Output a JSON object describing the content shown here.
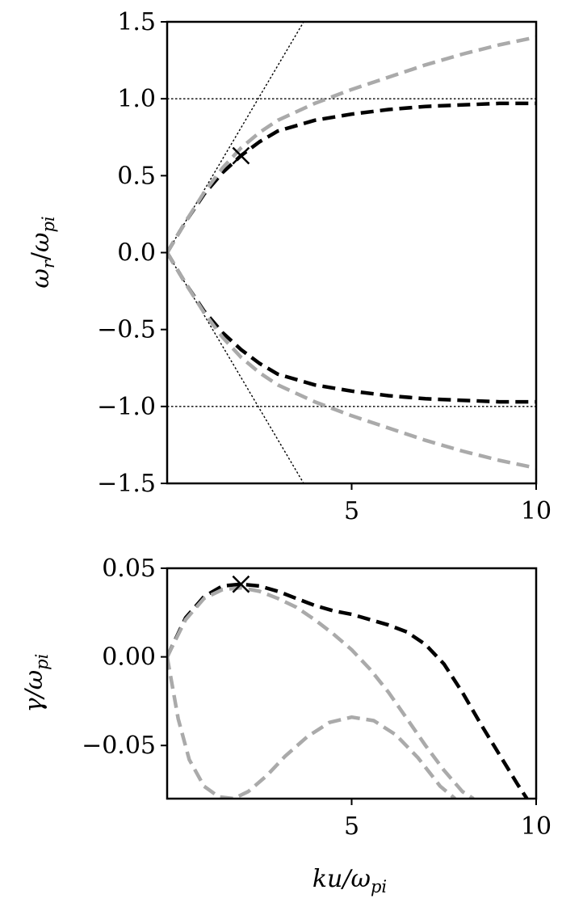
{
  "chart_data": [
    {
      "type": "line",
      "title": "",
      "xlabel": "",
      "ylabel": "ωr/ωpi",
      "ylabel_parts": {
        "base": "ω",
        "sub1": "r",
        "slash": "/",
        "base2": "ω",
        "sub2": "pi"
      },
      "xlim": [
        0,
        10
      ],
      "ylim": [
        -1.5,
        1.5
      ],
      "xticks": [
        5,
        10
      ],
      "xtick_labels": [
        "5",
        "10"
      ],
      "yticks": [
        1.5,
        1.0,
        0.5,
        0.0,
        -0.5,
        -1.0,
        -1.5
      ],
      "ytick_labels": [
        "1.5",
        "1.0",
        "0.5",
        "0.0",
        "−0.5",
        "−1.0",
        "−1.5"
      ],
      "grid": false,
      "series": [
        {
          "style": "dashed",
          "color": "#000000",
          "x": [
            0,
            0.5,
            1,
            1.5,
            2,
            2.5,
            3,
            4,
            5,
            6,
            7,
            8,
            9,
            10
          ],
          "y": [
            0,
            0.2,
            0.38,
            0.52,
            0.63,
            0.72,
            0.79,
            0.86,
            0.9,
            0.93,
            0.95,
            0.96,
            0.97,
            0.97
          ]
        },
        {
          "style": "dashed",
          "color": "#000000",
          "x": [
            0,
            0.5,
            1,
            1.5,
            2,
            2.5,
            3,
            4,
            5,
            6,
            7,
            8,
            9,
            10
          ],
          "y": [
            0,
            -0.2,
            -0.38,
            -0.52,
            -0.63,
            -0.72,
            -0.79,
            -0.86,
            -0.9,
            -0.93,
            -0.95,
            -0.96,
            -0.97,
            -0.97
          ]
        },
        {
          "style": "dashed",
          "color": "#aaaaaa",
          "x": [
            0,
            0.5,
            1,
            1.5,
            2,
            2.5,
            3,
            4,
            5,
            6,
            7,
            8,
            9,
            10
          ],
          "y": [
            0,
            0.2,
            0.39,
            0.55,
            0.68,
            0.78,
            0.86,
            0.97,
            1.06,
            1.14,
            1.22,
            1.29,
            1.35,
            1.4
          ]
        },
        {
          "style": "dashed",
          "color": "#aaaaaa",
          "x": [
            0,
            0.5,
            1,
            1.5,
            2,
            2.5,
            3,
            4,
            5,
            6,
            7,
            8,
            9,
            10
          ],
          "y": [
            0,
            -0.2,
            -0.39,
            -0.55,
            -0.68,
            -0.78,
            -0.86,
            -0.97,
            -1.06,
            -1.14,
            -1.22,
            -1.29,
            -1.35,
            -1.4
          ]
        }
      ],
      "reference_lines": [
        {
          "style": "dotted",
          "kind": "hline",
          "y": 1.0
        },
        {
          "style": "dotted",
          "kind": "hline",
          "y": -1.0
        },
        {
          "style": "dotted",
          "kind": "line",
          "x": [
            0,
            3.7
          ],
          "y": [
            0,
            1.5
          ]
        },
        {
          "style": "dotted",
          "kind": "line",
          "x": [
            0,
            3.7
          ],
          "y": [
            0,
            -1.5
          ]
        }
      ],
      "markers": [
        {
          "symbol": "×",
          "x": 2.0,
          "y": 0.63
        }
      ]
    },
    {
      "type": "line",
      "title": "",
      "xlabel": "ku/ωpi",
      "xlabel_parts": {
        "base": "ku/ω",
        "sub": "pi"
      },
      "ylabel": "γ/ωpi",
      "ylabel_parts": {
        "base": "γ/ω",
        "sub": "pi"
      },
      "xlim": [
        0,
        10
      ],
      "ylim": [
        -0.08,
        0.05
      ],
      "xticks": [
        5,
        10
      ],
      "xtick_labels": [
        "5",
        "10"
      ],
      "yticks": [
        0.05,
        0.0,
        -0.05
      ],
      "ytick_labels": [
        "0.05",
        "0.00",
        "−0.05"
      ],
      "grid": false,
      "series": [
        {
          "style": "dashed",
          "color": "#000000",
          "x": [
            0,
            0.5,
            1,
            1.5,
            2,
            2.5,
            3,
            3.5,
            4,
            4.5,
            5,
            5.5,
            6,
            6.5,
            7,
            7.5,
            8,
            8.5,
            9,
            9.5,
            9.75
          ],
          "y": [
            0,
            0.022,
            0.034,
            0.04,
            0.041,
            0.04,
            0.037,
            0.033,
            0.029,
            0.026,
            0.024,
            0.021,
            0.018,
            0.014,
            0.007,
            -0.004,
            -0.02,
            -0.038,
            -0.055,
            -0.072,
            -0.08
          ]
        },
        {
          "style": "dashed",
          "color": "#aaaaaa",
          "x": [
            0,
            0.5,
            1,
            1.5,
            2,
            2.5,
            3,
            3.5,
            4,
            4.5,
            5,
            5.5,
            6,
            6.5,
            7,
            7.5,
            8,
            8.3
          ],
          "y": [
            0,
            0.021,
            0.033,
            0.038,
            0.039,
            0.037,
            0.033,
            0.028,
            0.021,
            0.013,
            0.004,
            -0.007,
            -0.02,
            -0.035,
            -0.05,
            -0.064,
            -0.076,
            -0.08
          ]
        },
        {
          "style": "dashed",
          "color": "#aaaaaa",
          "x": [
            0,
            0.3,
            0.6,
            1,
            1.4,
            1.8,
            2.2,
            2.7,
            3.2,
            3.8,
            4.4,
            5,
            5.6,
            6.2,
            6.8,
            7.4,
            7.8
          ],
          "y": [
            0,
            -0.035,
            -0.058,
            -0.073,
            -0.079,
            -0.08,
            -0.076,
            -0.067,
            -0.056,
            -0.045,
            -0.037,
            -0.034,
            -0.036,
            -0.044,
            -0.057,
            -0.073,
            -0.08
          ]
        }
      ],
      "markers": [
        {
          "symbol": "×",
          "x": 2.0,
          "y": 0.041
        }
      ]
    }
  ]
}
